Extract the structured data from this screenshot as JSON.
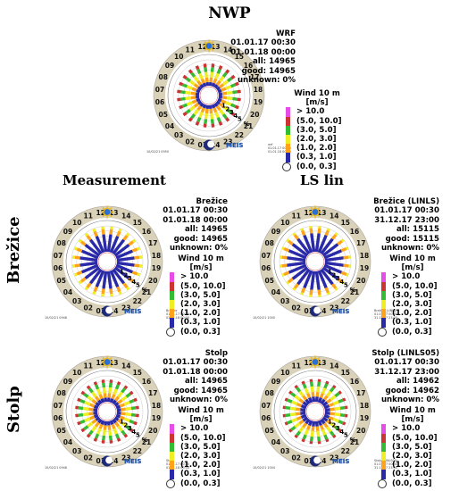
{
  "titles": {
    "nwp": "NWP",
    "measurement": "Measurement",
    "lslin": "LS lin"
  },
  "row_labels": [
    "Brežice",
    "Stolp"
  ],
  "legend": {
    "title_line1": "Wind 10 m",
    "title_line2": "[m/s]",
    "items": [
      "> 10.0",
      "(5.0, 10.0]",
      "(3.0, 5.0]",
      "(2.0, 3.0]",
      "(1.0, 2.0]",
      "(0.3, 1.0]",
      "(0.0, 0.3]"
    ],
    "colors": [
      "#e64ce6",
      "#cc3333",
      "#33bb33",
      "#eeee22",
      "#ffa31a",
      "#2a2aa8",
      "#ffffff"
    ]
  },
  "hours": [
    "01",
    "02",
    "03",
    "04",
    "05",
    "06",
    "07",
    "08",
    "09",
    "10",
    "11",
    "12",
    "13",
    "14",
    "15",
    "16",
    "17",
    "18",
    "19",
    "20",
    "21",
    "22",
    "23",
    "24"
  ],
  "ring_labels": [
    "1",
    "2",
    "3",
    "4",
    "5",
    "%"
  ],
  "logo_text": "MEIS",
  "chart_data": [
    {
      "type": "radial-stacked-bar",
      "panel": "nwp",
      "info": [
        "WRF",
        "01.01.17 00:30",
        "01.01.18 00:00",
        "all: 14965",
        "good: 14965",
        "unknown: 0%"
      ],
      "footer_left": "10/02/21 0950",
      "footer_right": [
        "wrf",
        "01.01.17 00:30",
        "01.01.18 00:00"
      ],
      "categories": [
        "01",
        "02",
        "03",
        "04",
        "05",
        "06",
        "07",
        "08",
        "09",
        "10",
        "11",
        "12",
        "13",
        "14",
        "15",
        "16",
        "17",
        "18",
        "19",
        "20",
        "21",
        "22",
        "23",
        "24"
      ],
      "series": [
        {
          "name": "(0.3, 1.0]",
          "values": [
            0.7,
            0.7,
            0.7,
            0.7,
            0.7,
            0.7,
            0.7,
            0.7,
            0.7,
            0.7,
            0.7,
            0.7,
            0.7,
            0.7,
            0.7,
            0.7,
            0.7,
            0.7,
            0.7,
            0.7,
            0.7,
            0.7,
            0.7,
            0.7
          ]
        },
        {
          "name": "(1.0, 2.0]",
          "values": [
            0.9,
            0.9,
            0.9,
            0.9,
            0.9,
            0.9,
            0.9,
            0.9,
            0.9,
            0.9,
            0.9,
            0.9,
            0.9,
            0.9,
            0.9,
            0.9,
            0.9,
            0.9,
            0.9,
            0.9,
            0.9,
            0.9,
            0.9,
            0.9
          ]
        },
        {
          "name": "(2.0, 3.0]",
          "values": [
            1.1,
            1.1,
            1.1,
            1.1,
            1.1,
            1.1,
            1.1,
            1.1,
            1.1,
            1.1,
            1.1,
            1.1,
            1.1,
            1.1,
            1.1,
            1.1,
            1.1,
            1.1,
            1.1,
            1.1,
            1.1,
            1.1,
            1.1,
            1.1
          ]
        },
        {
          "name": "(3.0, 5.0]",
          "values": [
            0.9,
            0.9,
            0.9,
            0.9,
            0.9,
            0.9,
            0.9,
            0.9,
            0.9,
            0.9,
            0.9,
            0.9,
            0.9,
            0.9,
            0.9,
            0.9,
            0.9,
            0.9,
            0.9,
            0.9,
            0.9,
            0.9,
            0.9,
            0.9
          ]
        },
        {
          "name": "(5.0, 10.0]",
          "values": [
            0.7,
            0.7,
            0.7,
            0.7,
            0.7,
            0.7,
            0.7,
            0.7,
            0.7,
            0.7,
            0.7,
            0.7,
            0.7,
            0.7,
            0.7,
            0.7,
            0.7,
            0.7,
            0.7,
            0.7,
            0.7,
            0.7,
            0.7,
            0.7
          ]
        }
      ]
    },
    {
      "type": "radial-stacked-bar",
      "panel": "measurement-brezice",
      "info": [
        "Brežice",
        "01.01.17 00:30",
        "01.01.18 00:00",
        "all: 14965",
        "good: 14965",
        "unknown: 0%"
      ],
      "footer_left": "10/02/21 0946",
      "footer_right": [
        "Brežice",
        "01.01.17 00:30",
        "01.01.18 00:00"
      ],
      "categories": [
        "01",
        "02",
        "03",
        "04",
        "05",
        "06",
        "07",
        "08",
        "09",
        "10",
        "11",
        "12",
        "13",
        "14",
        "15",
        "16",
        "17",
        "18",
        "19",
        "20",
        "21",
        "22",
        "23",
        "24"
      ],
      "series": [
        {
          "name": "(0.3, 1.0]",
          "values": [
            3.4,
            3.4,
            3.4,
            3.4,
            3.4,
            3.4,
            3.4,
            3.4,
            3.4,
            3.4,
            3.4,
            3.4,
            3.4,
            3.4,
            3.4,
            3.4,
            3.4,
            3.4,
            3.4,
            3.4,
            3.4,
            3.4,
            3.4,
            3.4
          ]
        },
        {
          "name": "(1.0, 2.0]",
          "values": [
            1.0,
            1.0,
            1.0,
            1.0,
            1.0,
            1.0,
            1.0,
            1.0,
            1.0,
            1.0,
            1.0,
            1.0,
            1.0,
            1.0,
            1.0,
            1.0,
            1.0,
            1.0,
            1.0,
            1.0,
            1.0,
            1.0,
            1.0,
            1.0
          ]
        },
        {
          "name": "(2.0, 3.0]",
          "values": [
            0.5,
            0.5,
            0.5,
            0.5,
            0.5,
            0.5,
            0.5,
            0.5,
            0.5,
            0.5,
            0.5,
            0.5,
            0.5,
            0.5,
            0.5,
            0.5,
            0.5,
            0.5,
            0.5,
            0.5,
            0.5,
            0.5,
            0.5,
            0.5
          ]
        }
      ]
    },
    {
      "type": "radial-stacked-bar",
      "panel": "lslin-brezice",
      "info": [
        "Brežice (LINLS)",
        "01.01.17 00:30",
        "31.12.17 23:00",
        "all: 15115",
        "good: 15115",
        "unknown: 0%"
      ],
      "footer_left": "10/02/21 1000",
      "footer_right": [
        "Brežice (LINLS)",
        "01.01.17 00:30",
        "31.12.17 23:00"
      ],
      "categories": [
        "01",
        "02",
        "03",
        "04",
        "05",
        "06",
        "07",
        "08",
        "09",
        "10",
        "11",
        "12",
        "13",
        "14",
        "15",
        "16",
        "17",
        "18",
        "19",
        "20",
        "21",
        "22",
        "23",
        "24"
      ],
      "series": [
        {
          "name": "(0.3, 1.0]",
          "values": [
            3.6,
            3.6,
            3.6,
            3.6,
            3.6,
            3.6,
            3.6,
            3.6,
            3.6,
            3.6,
            3.6,
            3.6,
            3.6,
            3.6,
            3.6,
            3.6,
            3.6,
            3.6,
            3.6,
            3.6,
            3.6,
            3.6,
            3.6,
            3.6
          ]
        },
        {
          "name": "(1.0, 2.0]",
          "values": [
            1.0,
            1.0,
            1.0,
            1.0,
            1.0,
            1.0,
            1.0,
            1.0,
            1.0,
            1.0,
            1.0,
            1.0,
            1.0,
            1.0,
            1.0,
            1.0,
            1.0,
            1.0,
            1.0,
            1.0,
            1.0,
            1.0,
            1.0,
            1.0
          ]
        },
        {
          "name": "(2.0, 3.0]",
          "values": [
            0.4,
            0.4,
            0.4,
            0.4,
            0.4,
            0.4,
            0.4,
            0.4,
            0.4,
            0.4,
            0.4,
            0.4,
            0.4,
            0.4,
            0.4,
            0.4,
            0.4,
            0.4,
            0.4,
            0.4,
            0.4,
            0.4,
            0.4,
            0.4
          ]
        }
      ]
    },
    {
      "type": "radial-stacked-bar",
      "panel": "measurement-stolp",
      "info": [
        "Stolp",
        "01.01.17 00:30",
        "01.01.18 00:00",
        "all: 14965",
        "good: 14965",
        "unknown: 0%"
      ],
      "footer_left": "10/02/21 0946",
      "footer_right": [
        "Stolp",
        "01.01.17 00:30",
        "01.01.18 00:00"
      ],
      "categories": [
        "01",
        "02",
        "03",
        "04",
        "05",
        "06",
        "07",
        "08",
        "09",
        "10",
        "11",
        "12",
        "13",
        "14",
        "15",
        "16",
        "17",
        "18",
        "19",
        "20",
        "21",
        "22",
        "23",
        "24"
      ],
      "series": [
        {
          "name": "(0.3, 1.0]",
          "values": [
            0.8,
            0.8,
            0.8,
            0.8,
            0.8,
            0.8,
            0.8,
            0.8,
            0.8,
            0.8,
            0.8,
            0.8,
            0.8,
            0.8,
            0.8,
            0.8,
            0.8,
            0.8,
            0.8,
            0.8,
            0.8,
            0.8,
            0.8,
            0.8
          ]
        },
        {
          "name": "(1.0, 2.0]",
          "values": [
            0.9,
            0.9,
            0.9,
            0.9,
            0.9,
            0.9,
            0.9,
            0.9,
            0.9,
            0.9,
            0.9,
            0.9,
            0.9,
            0.9,
            0.9,
            0.9,
            0.9,
            0.9,
            0.9,
            0.9,
            0.9,
            0.9,
            0.9,
            0.9
          ]
        },
        {
          "name": "(2.0, 3.0]",
          "values": [
            1.1,
            1.1,
            1.1,
            1.1,
            1.1,
            1.1,
            1.1,
            1.1,
            1.1,
            1.1,
            1.1,
            1.1,
            1.1,
            1.1,
            1.1,
            1.1,
            1.1,
            1.1,
            1.1,
            1.1,
            1.1,
            1.1,
            1.1,
            1.1
          ]
        },
        {
          "name": "(3.0, 5.0]",
          "values": [
            0.9,
            0.9,
            0.9,
            0.9,
            0.9,
            0.9,
            0.9,
            0.9,
            0.9,
            0.9,
            0.9,
            0.9,
            0.9,
            0.9,
            0.9,
            0.9,
            0.9,
            0.9,
            0.9,
            0.9,
            0.9,
            0.9,
            0.9,
            0.9
          ]
        },
        {
          "name": "(5.0, 10.0]",
          "values": [
            0.6,
            0.6,
            0.6,
            0.6,
            0.6,
            0.6,
            0.6,
            0.6,
            0.6,
            0.6,
            0.6,
            0.6,
            0.6,
            0.6,
            0.6,
            0.6,
            0.6,
            0.6,
            0.6,
            0.6,
            0.6,
            0.6,
            0.6,
            0.6
          ]
        }
      ]
    },
    {
      "type": "radial-stacked-bar",
      "panel": "lslin-stolp",
      "info": [
        "Stolp (LINLS05)",
        "01.01.17 00:30",
        "31.12.17 23:00",
        "all: 14962",
        "good: 14962",
        "unknown: 0%"
      ],
      "footer_left": "10/02/21 1004",
      "footer_right": [
        "Stolp (LINLS05)",
        "01.01.17 00:30",
        "31.12.17 23:00"
      ],
      "categories": [
        "01",
        "02",
        "03",
        "04",
        "05",
        "06",
        "07",
        "08",
        "09",
        "10",
        "11",
        "12",
        "13",
        "14",
        "15",
        "16",
        "17",
        "18",
        "19",
        "20",
        "21",
        "22",
        "23",
        "24"
      ],
      "series": [
        {
          "name": "(0.3, 1.0]",
          "values": [
            1.0,
            1.0,
            1.0,
            1.0,
            1.0,
            1.0,
            1.0,
            1.0,
            1.0,
            1.0,
            1.0,
            1.0,
            1.0,
            1.0,
            1.0,
            1.0,
            1.0,
            1.0,
            1.0,
            1.0,
            1.0,
            1.0,
            1.0,
            1.0
          ]
        },
        {
          "name": "(1.0, 2.0]",
          "values": [
            0.9,
            0.9,
            0.9,
            0.9,
            0.9,
            0.9,
            0.9,
            0.9,
            0.9,
            0.9,
            0.9,
            0.9,
            0.9,
            0.9,
            0.9,
            0.9,
            0.9,
            0.9,
            0.9,
            0.9,
            0.9,
            0.9,
            0.9,
            0.9
          ]
        },
        {
          "name": "(2.0, 3.0]",
          "values": [
            1.1,
            1.1,
            1.1,
            1.1,
            1.1,
            1.1,
            1.1,
            1.1,
            1.1,
            1.1,
            1.1,
            1.1,
            1.1,
            1.1,
            1.1,
            1.1,
            1.1,
            1.1,
            1.1,
            1.1,
            1.1,
            1.1,
            1.1,
            1.1
          ]
        },
        {
          "name": "(3.0, 5.0]",
          "values": [
            0.9,
            0.9,
            0.9,
            0.9,
            0.9,
            0.9,
            0.9,
            0.9,
            0.9,
            0.9,
            0.9,
            0.9,
            0.9,
            0.9,
            0.9,
            0.9,
            0.9,
            0.9,
            0.9,
            0.9,
            0.9,
            0.9,
            0.9,
            0.9
          ]
        },
        {
          "name": "(5.0, 10.0]",
          "values": [
            0.5,
            0.5,
            0.5,
            0.5,
            0.5,
            0.5,
            0.5,
            0.5,
            0.5,
            0.5,
            0.5,
            0.5,
            0.5,
            0.5,
            0.5,
            0.5,
            0.5,
            0.5,
            0.5,
            0.5,
            0.5,
            0.5,
            0.5,
            0.5
          ]
        }
      ]
    }
  ]
}
